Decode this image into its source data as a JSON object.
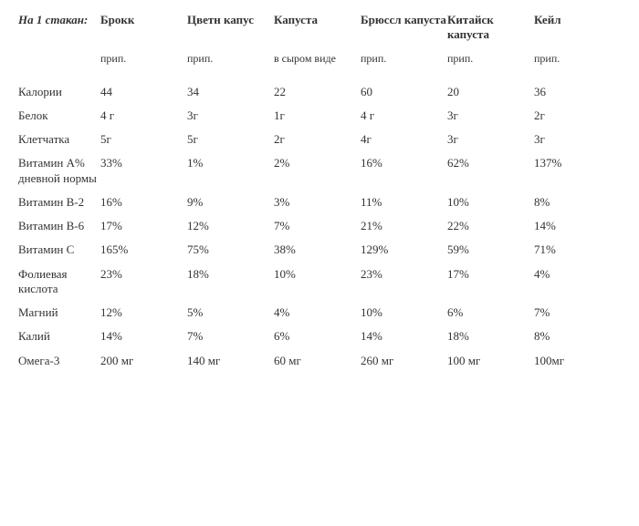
{
  "table": {
    "corner_label": "На 1 стакан:",
    "background_color": "#ffffff",
    "text_color": "#333333",
    "font_family": "Georgia, serif",
    "base_fontsize": 13,
    "columns": [
      {
        "label": "Брокк",
        "prep": "прип."
      },
      {
        "label": "Цветн капус",
        "prep": "прип."
      },
      {
        "label": "Капуста",
        "prep": "в сыром виде"
      },
      {
        "label": "Брюссл капуста",
        "prep": "прип."
      },
      {
        "label": "Китайск капуста",
        "prep": "прип."
      },
      {
        "label": "Кейл",
        "prep": "прип."
      }
    ],
    "rows": [
      {
        "label": "Калории",
        "values": [
          "44",
          "34",
          "22",
          "60",
          "20",
          "36"
        ]
      },
      {
        "label": "Белок",
        "values": [
          "4 г",
          "3г",
          "1г",
          "4 г",
          "3г",
          "2г"
        ]
      },
      {
        "label": "Клетчатка",
        "values": [
          "5г",
          "5г",
          "2г",
          "4г",
          "3г",
          "3г"
        ]
      },
      {
        "label": "Витамин А% дневной нормы",
        "values": [
          "33%",
          "1%",
          "2%",
          "16%",
          "62%",
          "137%"
        ]
      },
      {
        "label": "Витамин B-2",
        "values": [
          "16%",
          "9%",
          "3%",
          "11%",
          "10%",
          "8%"
        ]
      },
      {
        "label": "Витамин B-6",
        "values": [
          "17%",
          "12%",
          "7%",
          "21%",
          "22%",
          "14%"
        ]
      },
      {
        "label": "Витамин C",
        "values": [
          "165%",
          "75%",
          "38%",
          "129%",
          "59%",
          "71%"
        ]
      },
      {
        "label": "Фолиевая кислота",
        "values": [
          "23%",
          "18%",
          "10%",
          "23%",
          "17%",
          "4%"
        ]
      },
      {
        "label": "Магний",
        "values": [
          "12%",
          "5%",
          "4%",
          "10%",
          "6%",
          "7%"
        ]
      },
      {
        "label": "Калий",
        "values": [
          "14%",
          "7%",
          "6%",
          "14%",
          "18%",
          "8%"
        ]
      },
      {
        "label": "Омега-3",
        "values": [
          "200 мг",
          "140 мг",
          "60 мг",
          "260 мг",
          "100 мг",
          "100мг"
        ]
      }
    ]
  }
}
